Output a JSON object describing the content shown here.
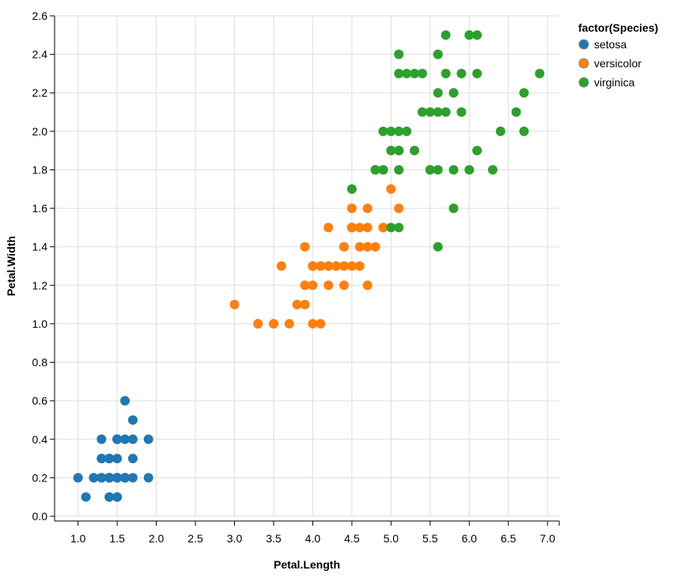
{
  "chart_data": {
    "type": "scatter",
    "xlabel": "Petal.Length",
    "ylabel": "Petal.Width",
    "xlim": [
      0.7,
      7.15
    ],
    "ylim": [
      0,
      2.6
    ],
    "x_ticks": [
      1.0,
      1.5,
      2.0,
      2.5,
      3.0,
      3.5,
      4.0,
      4.5,
      5.0,
      5.5,
      6.0,
      6.5,
      7.0
    ],
    "x_tick_labels": [
      "1.0",
      "1.5",
      "2.0",
      "2.5",
      "3.0",
      "3.5",
      "4.0",
      "4.5",
      "5.0",
      "5.5",
      "6.0",
      "6.5",
      "7.0"
    ],
    "y_ticks": [
      0.0,
      0.2,
      0.4,
      0.6,
      0.8,
      1.0,
      1.2,
      1.4,
      1.6,
      1.8,
      2.0,
      2.2,
      2.4,
      2.6
    ],
    "y_tick_labels": [
      "0.0",
      "0.2",
      "0.4",
      "0.6",
      "0.8",
      "1.0",
      "1.2",
      "1.4",
      "1.6",
      "1.8",
      "2.0",
      "2.2",
      "2.4",
      "2.6"
    ],
    "grid": true,
    "legend": {
      "title": "factor(Species)",
      "position": "top-right"
    },
    "series": [
      {
        "name": "setosa",
        "color": "#1f77b4",
        "points": [
          [
            1.4,
            0.2
          ],
          [
            1.4,
            0.2
          ],
          [
            1.3,
            0.2
          ],
          [
            1.5,
            0.2
          ],
          [
            1.4,
            0.2
          ],
          [
            1.7,
            0.4
          ],
          [
            1.4,
            0.3
          ],
          [
            1.5,
            0.2
          ],
          [
            1.4,
            0.2
          ],
          [
            1.5,
            0.1
          ],
          [
            1.5,
            0.2
          ],
          [
            1.6,
            0.2
          ],
          [
            1.4,
            0.1
          ],
          [
            1.1,
            0.1
          ],
          [
            1.2,
            0.2
          ],
          [
            1.5,
            0.4
          ],
          [
            1.3,
            0.4
          ],
          [
            1.4,
            0.3
          ],
          [
            1.7,
            0.3
          ],
          [
            1.5,
            0.3
          ],
          [
            1.7,
            0.2
          ],
          [
            1.5,
            0.4
          ],
          [
            1.0,
            0.2
          ],
          [
            1.7,
            0.5
          ],
          [
            1.9,
            0.2
          ],
          [
            1.6,
            0.2
          ],
          [
            1.6,
            0.4
          ],
          [
            1.5,
            0.2
          ],
          [
            1.4,
            0.2
          ],
          [
            1.6,
            0.2
          ],
          [
            1.6,
            0.2
          ],
          [
            1.5,
            0.4
          ],
          [
            1.5,
            0.1
          ],
          [
            1.4,
            0.2
          ],
          [
            1.5,
            0.2
          ],
          [
            1.2,
            0.2
          ],
          [
            1.3,
            0.2
          ],
          [
            1.4,
            0.1
          ],
          [
            1.3,
            0.2
          ],
          [
            1.5,
            0.2
          ],
          [
            1.3,
            0.3
          ],
          [
            1.3,
            0.3
          ],
          [
            1.3,
            0.2
          ],
          [
            1.6,
            0.6
          ],
          [
            1.9,
            0.4
          ],
          [
            1.4,
            0.3
          ],
          [
            1.6,
            0.2
          ],
          [
            1.4,
            0.2
          ],
          [
            1.5,
            0.2
          ],
          [
            1.4,
            0.2
          ]
        ]
      },
      {
        "name": "versicolor",
        "color": "#ff7f0e",
        "points": [
          [
            4.7,
            1.4
          ],
          [
            4.5,
            1.5
          ],
          [
            4.9,
            1.5
          ],
          [
            4.0,
            1.3
          ],
          [
            4.6,
            1.5
          ],
          [
            4.5,
            1.3
          ],
          [
            4.7,
            1.6
          ],
          [
            3.3,
            1.0
          ],
          [
            4.6,
            1.3
          ],
          [
            3.9,
            1.4
          ],
          [
            3.5,
            1.0
          ],
          [
            4.2,
            1.5
          ],
          [
            4.0,
            1.0
          ],
          [
            4.7,
            1.4
          ],
          [
            3.6,
            1.3
          ],
          [
            4.4,
            1.4
          ],
          [
            4.5,
            1.5
          ],
          [
            4.1,
            1.0
          ],
          [
            4.5,
            1.5
          ],
          [
            3.9,
            1.1
          ],
          [
            4.8,
            1.8
          ],
          [
            4.0,
            1.3
          ],
          [
            4.9,
            1.5
          ],
          [
            4.7,
            1.2
          ],
          [
            4.3,
            1.3
          ],
          [
            4.4,
            1.4
          ],
          [
            4.8,
            1.4
          ],
          [
            5.0,
            1.7
          ],
          [
            4.5,
            1.5
          ],
          [
            3.5,
            1.0
          ],
          [
            3.8,
            1.1
          ],
          [
            3.7,
            1.0
          ],
          [
            3.9,
            1.2
          ],
          [
            5.1,
            1.6
          ],
          [
            4.5,
            1.5
          ],
          [
            4.5,
            1.6
          ],
          [
            4.7,
            1.5
          ],
          [
            4.4,
            1.3
          ],
          [
            4.1,
            1.3
          ],
          [
            4.0,
            1.3
          ],
          [
            4.4,
            1.2
          ],
          [
            4.6,
            1.4
          ],
          [
            4.0,
            1.2
          ],
          [
            3.3,
            1.0
          ],
          [
            4.2,
            1.3
          ],
          [
            4.2,
            1.2
          ],
          [
            4.2,
            1.3
          ],
          [
            4.3,
            1.3
          ],
          [
            3.0,
            1.1
          ],
          [
            4.1,
            1.3
          ]
        ]
      },
      {
        "name": "virginica",
        "color": "#2ca02c",
        "points": [
          [
            6.0,
            2.5
          ],
          [
            5.1,
            1.9
          ],
          [
            5.9,
            2.1
          ],
          [
            5.6,
            1.8
          ],
          [
            5.8,
            2.2
          ],
          [
            6.6,
            2.1
          ],
          [
            4.5,
            1.7
          ],
          [
            6.3,
            1.8
          ],
          [
            5.8,
            1.8
          ],
          [
            6.1,
            2.5
          ],
          [
            5.1,
            2.0
          ],
          [
            5.3,
            1.9
          ],
          [
            5.5,
            2.1
          ],
          [
            5.0,
            2.0
          ],
          [
            5.1,
            2.4
          ],
          [
            5.3,
            2.3
          ],
          [
            5.5,
            1.8
          ],
          [
            6.7,
            2.2
          ],
          [
            6.9,
            2.3
          ],
          [
            5.0,
            1.5
          ],
          [
            5.7,
            2.3
          ],
          [
            4.9,
            2.0
          ],
          [
            6.7,
            2.0
          ],
          [
            4.9,
            1.8
          ],
          [
            5.7,
            2.1
          ],
          [
            6.0,
            1.8
          ],
          [
            4.8,
            1.8
          ],
          [
            4.9,
            1.8
          ],
          [
            5.6,
            2.1
          ],
          [
            5.8,
            1.6
          ],
          [
            6.1,
            1.9
          ],
          [
            6.4,
            2.0
          ],
          [
            5.6,
            2.2
          ],
          [
            5.1,
            1.5
          ],
          [
            5.6,
            1.4
          ],
          [
            6.1,
            2.3
          ],
          [
            5.6,
            2.4
          ],
          [
            5.5,
            1.8
          ],
          [
            4.8,
            1.8
          ],
          [
            5.4,
            2.1
          ],
          [
            5.6,
            2.4
          ],
          [
            5.1,
            2.3
          ],
          [
            5.1,
            1.9
          ],
          [
            5.9,
            2.3
          ],
          [
            5.7,
            2.5
          ],
          [
            5.2,
            2.3
          ],
          [
            5.0,
            1.9
          ],
          [
            5.2,
            2.0
          ],
          [
            5.4,
            2.3
          ],
          [
            5.1,
            1.8
          ]
        ]
      }
    ]
  }
}
